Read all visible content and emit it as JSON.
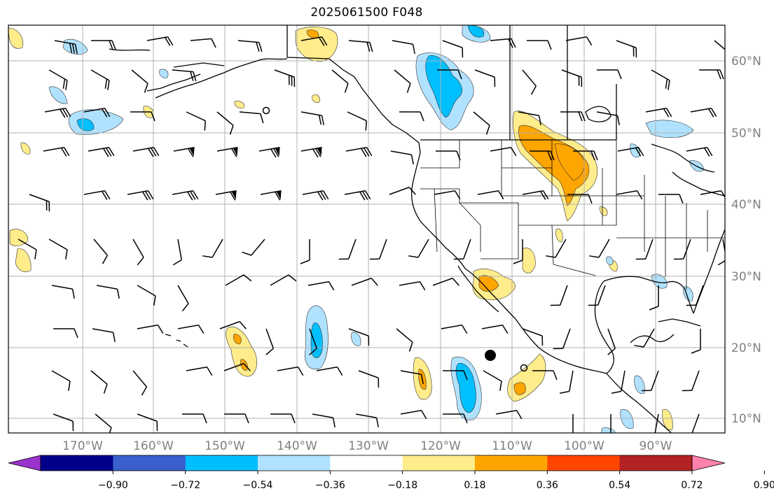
{
  "title": "2025061500 F048",
  "map": {
    "lon_labels": [
      "170°W",
      "160°W",
      "150°W",
      "140°W",
      "130°W",
      "120°W",
      "110°W",
      "100°W",
      "90°W"
    ],
    "lat_labels": [
      "60°N",
      "50°N",
      "40°N",
      "30°N",
      "20°N",
      "10°N"
    ],
    "gridlines": true,
    "label_color": "#808080"
  },
  "colorbar": {
    "tick_labels": [
      "−0.90",
      "−0.72",
      "−0.54",
      "−0.36",
      "−0.18",
      "0.18",
      "0.36",
      "0.54",
      "0.72",
      "0.90"
    ],
    "colors": [
      "#9a32cd",
      "#00008b",
      "#3a5fcd",
      "#00bfff",
      "#b0e2ff",
      "#ffffff",
      "#ffec8b",
      "#ffa500",
      "#ff4500",
      "#b22222",
      "#ff82ab"
    ],
    "extend": "both"
  },
  "legend_colors": {
    "coast": "#000000",
    "grid": "#b0b0b0"
  },
  "markers": [
    {
      "name": "low-center-large",
      "filled": true
    },
    {
      "name": "open-circle-1",
      "filled": false
    },
    {
      "name": "open-circle-2",
      "filled": false
    }
  ]
}
